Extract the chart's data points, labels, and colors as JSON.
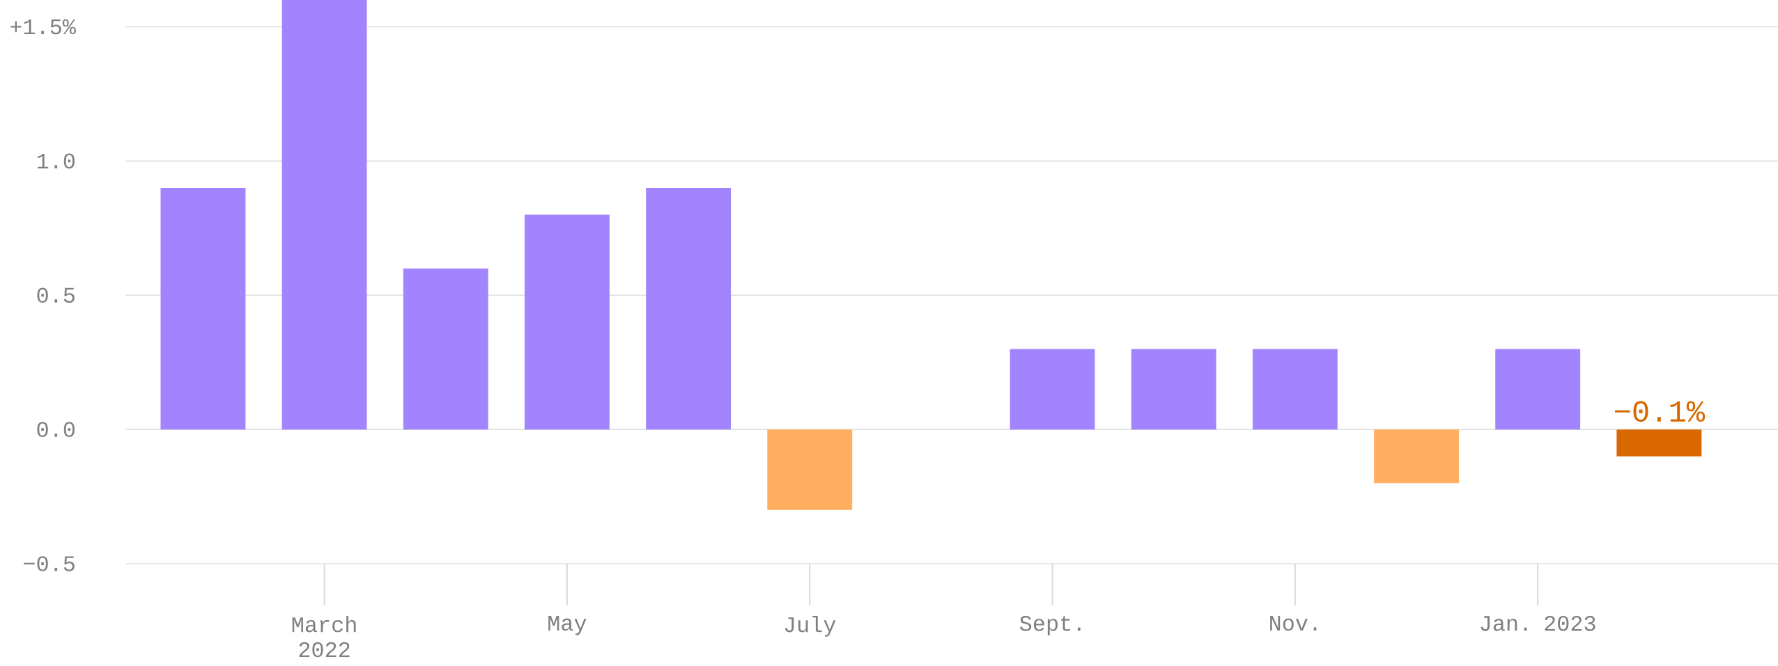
{
  "chart_data": {
    "type": "bar",
    "categories": [
      null,
      "March 2022",
      null,
      "May",
      null,
      "July",
      null,
      "Sept.",
      null,
      "Nov.",
      null,
      "Jan. 2023",
      null
    ],
    "values": [
      0.9,
      1.6,
      0.6,
      0.8,
      0.9,
      -0.3,
      0,
      0.3,
      0.3,
      0.3,
      -0.2,
      0.3,
      -0.1
    ],
    "colors": [
      "#a384ff",
      "#a384ff",
      "#a384ff",
      "#a384ff",
      "#a384ff",
      "#ffaf5f",
      "#a384ff",
      "#a384ff",
      "#a384ff",
      "#a384ff",
      "#ffaf5f",
      "#a384ff",
      "#d96800"
    ],
    "value_labels": [
      null,
      null,
      null,
      null,
      null,
      null,
      null,
      null,
      null,
      null,
      null,
      null,
      "−0.1%"
    ],
    "ylim": [
      -0.5,
      1.6
    ],
    "yticks": [
      {
        "value": -0.5,
        "label": "−0.5"
      },
      {
        "value": 0,
        "label": "0.0"
      },
      0.5,
      {
        "value": 1.0,
        "label": "1.0"
      },
      {
        "value": 1.5,
        "label": "+1.5%"
      }
    ],
    "grid": "y"
  }
}
